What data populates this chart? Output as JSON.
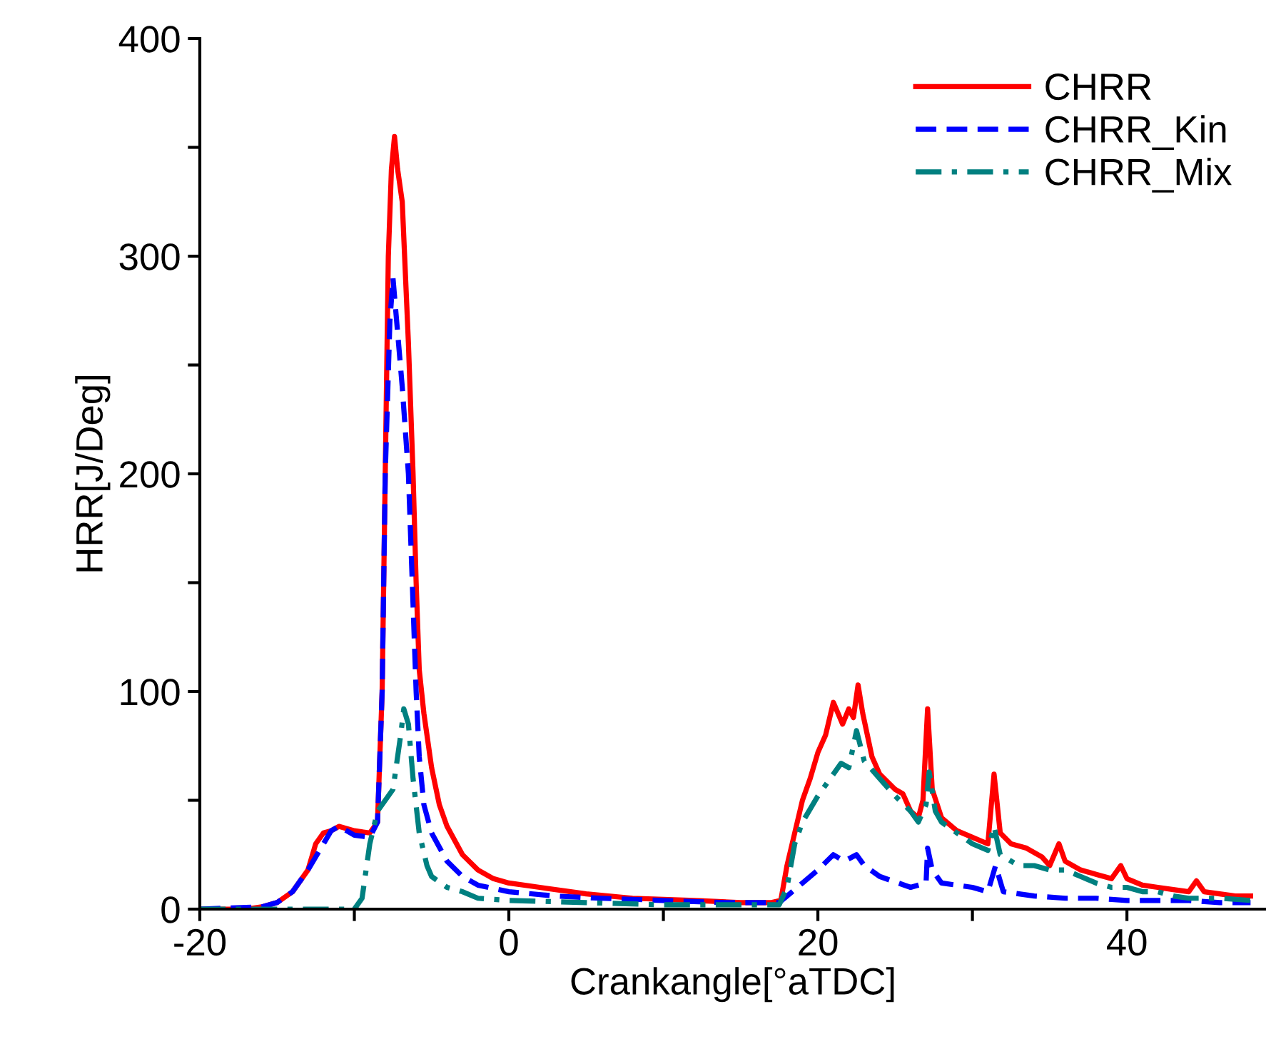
{
  "chart_data": {
    "type": "line",
    "xlabel": "Crankangle[°aTDC]",
    "ylabel": "HRR[J/Deg]",
    "xlim": [
      -20,
      49
    ],
    "ylim": [
      0,
      400
    ],
    "xticks": [
      -20,
      {
        "value": -10,
        "label": null
      },
      0,
      {
        "value": 10,
        "label": null
      },
      20,
      {
        "value": 30,
        "label": null
      },
      40
    ],
    "yticks": [
      0,
      {
        "value": 50,
        "label": null
      },
      100,
      {
        "value": 150,
        "label": null
      },
      200,
      {
        "value": 250,
        "label": null
      },
      300,
      {
        "value": 350,
        "label": null
      },
      400
    ],
    "grid": false,
    "legend": "top right",
    "marker": "none",
    "series": [
      {
        "name": "CHRR",
        "color": "#ff0000",
        "line_style": "solid",
        "x": [
          -20,
          -17,
          -16,
          -15,
          -14,
          -13,
          -12.5,
          -12,
          -11.5,
          -11,
          -10,
          -9,
          -8.5,
          -8.2,
          -8,
          -7.8,
          -7.6,
          -7.4,
          -7.2,
          -6.9,
          -6.5,
          -6.2,
          -6,
          -5.8,
          -5.5,
          -5,
          -4.5,
          -4,
          -3,
          -2,
          -1,
          0,
          2,
          5,
          8,
          12,
          15,
          17,
          17.6,
          18,
          18.5,
          19,
          19.5,
          20,
          20.5,
          21,
          21.3,
          21.6,
          22,
          22.3,
          22.6,
          22.9,
          23.5,
          24,
          25,
          25.5,
          26,
          26.5,
          26.8,
          27.1,
          27.4,
          28,
          29,
          30,
          31,
          31.4,
          31.8,
          32.5,
          33.5,
          34.5,
          35,
          35.6,
          36,
          37,
          38,
          39,
          39.6,
          40,
          41,
          42,
          43,
          44,
          44.5,
          45,
          46,
          47,
          48
        ],
        "values": [
          0,
          0,
          1,
          3,
          8,
          18,
          30,
          35,
          36,
          38,
          36,
          35,
          40,
          100,
          200,
          300,
          340,
          355,
          340,
          325,
          260,
          200,
          150,
          110,
          90,
          65,
          48,
          38,
          25,
          18,
          14,
          12,
          10,
          7,
          5,
          4,
          3,
          3,
          4,
          20,
          35,
          50,
          60,
          72,
          80,
          95,
          90,
          85,
          92,
          88,
          103,
          90,
          70,
          62,
          55,
          53,
          45,
          42,
          50,
          92,
          55,
          42,
          36,
          33,
          30,
          62,
          35,
          30,
          28,
          24,
          20,
          30,
          22,
          18,
          16,
          14,
          20,
          14,
          11,
          10,
          9,
          8,
          13,
          8,
          7,
          6,
          6
        ]
      },
      {
        "name": "CHRR_Kin",
        "color": "#0000ff",
        "line_style": "dashed",
        "x": [
          -20,
          -16,
          -15,
          -14,
          -13,
          -12,
          -11.5,
          -11,
          -10.5,
          -10,
          -9,
          -8.5,
          -8.2,
          -8,
          -7.7,
          -7.5,
          -7.2,
          -6.9,
          -6.5,
          -6.2,
          -6,
          -5.8,
          -5.5,
          -5,
          -4,
          -3,
          -2,
          0,
          3,
          6,
          10,
          14,
          17.5,
          18,
          19,
          20,
          21,
          21.7,
          22.5,
          23,
          24,
          26,
          27,
          27.1,
          27.4,
          28,
          30,
          31,
          31.5,
          32,
          34,
          36,
          38,
          40,
          42,
          44,
          46,
          48
        ],
        "values": [
          0,
          1,
          3,
          8,
          18,
          30,
          36,
          38,
          36,
          34,
          33,
          40,
          100,
          200,
          270,
          290,
          265,
          240,
          200,
          140,
          100,
          70,
          48,
          35,
          22,
          15,
          11,
          8,
          6,
          5,
          4,
          3,
          3,
          6,
          12,
          18,
          25,
          22,
          25,
          20,
          15,
          10,
          12,
          28,
          18,
          12,
          10,
          8,
          20,
          8,
          6,
          5,
          5,
          4,
          4,
          4,
          3,
          3
        ]
      },
      {
        "name": "CHRR_Mix",
        "color": "#008080",
        "line_style": "dashdot",
        "x": [
          -20,
          -12,
          -10,
          -9.5,
          -9,
          -8.5,
          -8,
          -7.5,
          -7,
          -6.8,
          -6.5,
          -6.2,
          -5.8,
          -5.3,
          -5,
          -4,
          -3,
          -2,
          0,
          5,
          10,
          15,
          17.5,
          18,
          18.5,
          19,
          20,
          21,
          21.5,
          22,
          22.5,
          23,
          24,
          25,
          26,
          26.5,
          27,
          27.2,
          27.6,
          28,
          29,
          30,
          31,
          31.4,
          31.8,
          33,
          34,
          35,
          36,
          37,
          38,
          39,
          40,
          41,
          42,
          43,
          44,
          46,
          48
        ],
        "values": [
          0,
          0,
          0,
          5,
          30,
          45,
          50,
          55,
          80,
          92,
          85,
          60,
          35,
          20,
          15,
          10,
          8,
          5,
          4,
          3,
          2,
          2,
          2,
          10,
          30,
          40,
          52,
          62,
          67,
          65,
          82,
          68,
          60,
          52,
          45,
          40,
          48,
          63,
          45,
          40,
          35,
          30,
          27,
          38,
          25,
          20,
          20,
          18,
          18,
          15,
          12,
          10,
          10,
          8,
          8,
          6,
          5,
          5,
          4
        ]
      }
    ]
  }
}
